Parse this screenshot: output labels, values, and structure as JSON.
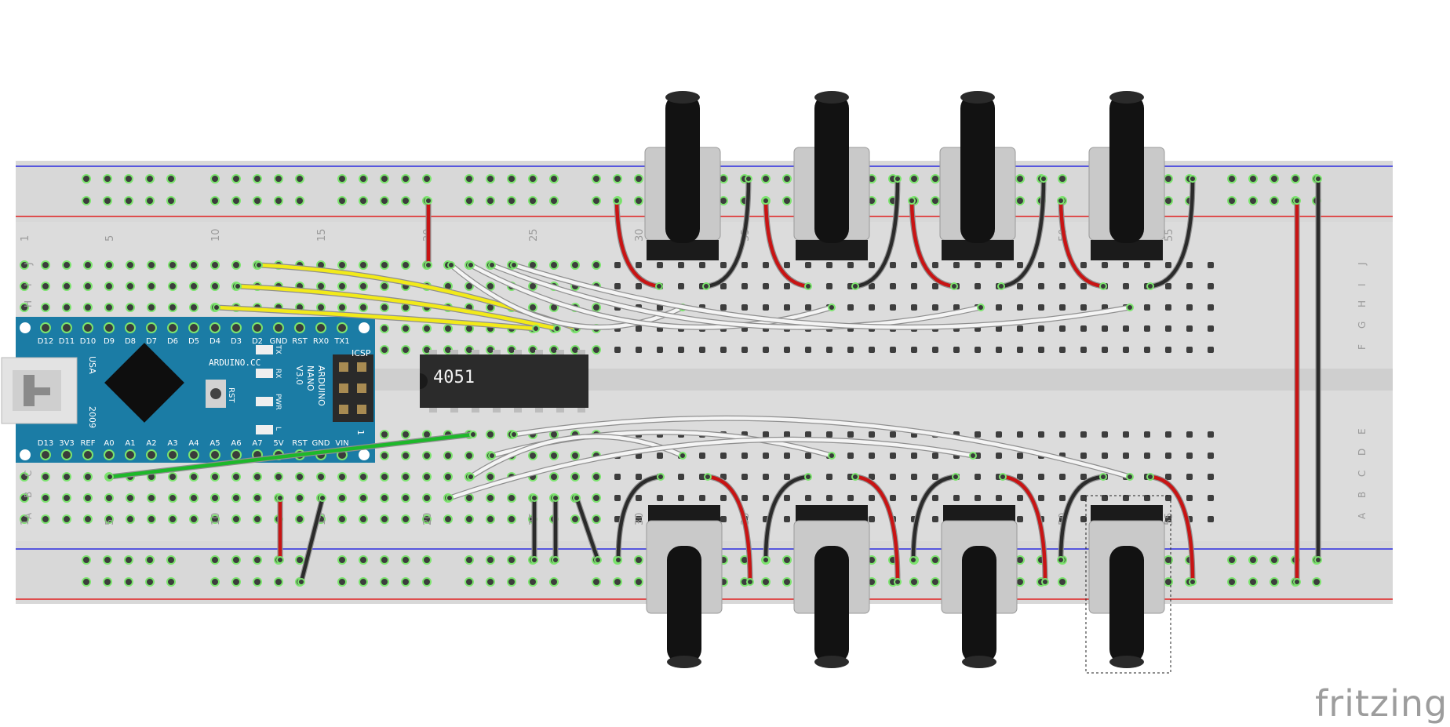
{
  "watermark": "fritzing",
  "chip_label": "4051",
  "breadboard": {
    "row_letters_top": [
      "J",
      "I",
      "H",
      "G",
      "F"
    ],
    "row_letters_bottom": [
      "E",
      "D",
      "C",
      "B",
      "A"
    ],
    "column_numbers": [
      "1",
      "5",
      "10",
      "15",
      "20",
      "25",
      "30",
      "35",
      "40",
      "45",
      "50",
      "55"
    ]
  },
  "arduino": {
    "top_pins": [
      "D12",
      "D11",
      "D10",
      "D9",
      "D8",
      "D7",
      "D6",
      "D5",
      "D4",
      "D3",
      "D2",
      "GND",
      "RST",
      "RX0",
      "TX1"
    ],
    "bottom_pins": [
      "D13",
      "3V3",
      "REF",
      "A0",
      "A1",
      "A2",
      "A3",
      "A4",
      "A5",
      "A6",
      "A7",
      "5V",
      "RST",
      "GND",
      "VIN"
    ],
    "brand": "ARDUINO.CC",
    "model": "ARDUINO",
    "model2": "NANO",
    "version": "V3.0",
    "usa": "USA",
    "year": "2009",
    "rst": "RST",
    "icsp": "ICSP",
    "led_tx": "TX",
    "led_rx": "RX",
    "led_pwr": "PWR",
    "led_l": "L",
    "icsp_marker": "1"
  },
  "colors": {
    "board": "#dcdcdc",
    "rail_blue": "#2a2ae0",
    "rail_red": "#e02020",
    "hole_green": "#7ce46e",
    "wire_red": "#c81414",
    "wire_black": "#2b2b2b",
    "wire_yellow": "#f2ea1a",
    "wire_green": "#1db82a",
    "wire_white": "#f4f4f4",
    "arduino_blue": "#1b7ca5"
  }
}
